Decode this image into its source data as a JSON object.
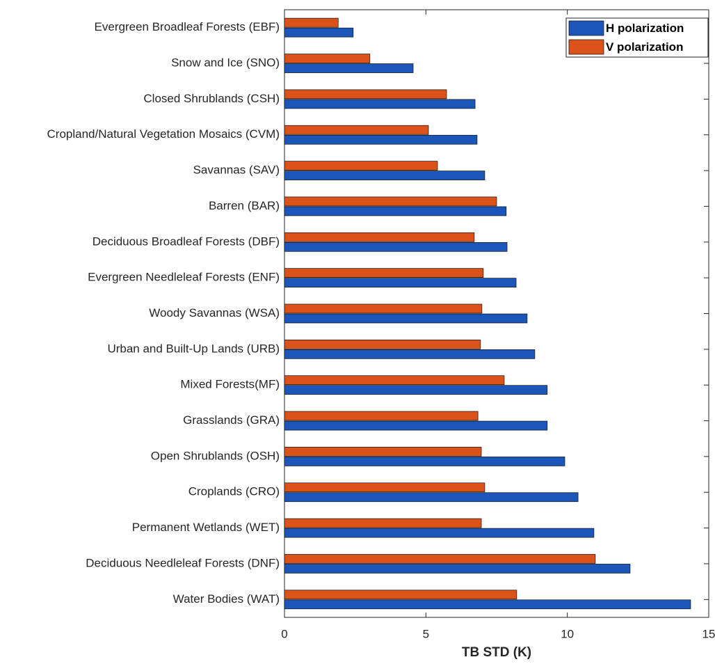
{
  "chart_data": {
    "type": "barh",
    "xlabel": "TB STD (K)",
    "categories": [
      "Evergreen Broadleaf Forests (EBF)",
      "Snow and Ice (SNO)",
      "Closed Shrublands (CSH)",
      "Cropland/Natural Vegetation Mosaics (CVM)",
      "Savannas (SAV)",
      "Barren (BAR)",
      "Deciduous Broadleaf Forests (DBF)",
      "Evergreen Needleleaf Forests (ENF)",
      "Woody Savannas (WSA)",
      "Urban and Built-Up Lands (URB)",
      "Mixed Forests(MF)",
      "Grasslands (GRA)",
      "Open Shrublands (OSH)",
      "Croplands (CRO)",
      "Permanent Wetlands (WET)",
      "Deciduous Needleleaf Forests (DNF)",
      "Water Bodies (WAT)"
    ],
    "series": [
      {
        "name": "H polarization",
        "color": "#1b56b8",
        "values": [
          2.43,
          4.55,
          6.74,
          6.81,
          7.08,
          7.84,
          7.87,
          8.19,
          8.58,
          8.85,
          9.29,
          9.29,
          9.91,
          10.38,
          10.94,
          12.22,
          14.36
        ]
      },
      {
        "name": "V polarization",
        "color": "#d9531a",
        "values": [
          1.9,
          3.02,
          5.73,
          5.09,
          5.41,
          7.5,
          6.71,
          7.03,
          6.98,
          6.93,
          7.77,
          6.84,
          6.96,
          7.08,
          6.96,
          10.99,
          8.21
        ]
      }
    ],
    "xlim": [
      0,
      15
    ],
    "xticks": [
      0,
      5,
      10,
      15
    ],
    "legend": "top-right"
  }
}
